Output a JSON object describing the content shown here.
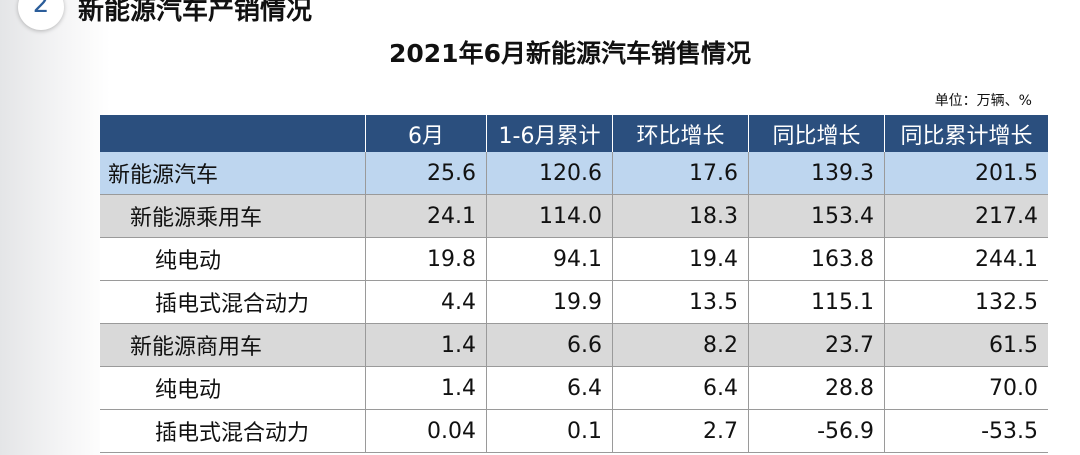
{
  "section": {
    "number": "2",
    "title": "新能源汽车产销情况"
  },
  "table_title": "2021年6月新能源汽车销售情况",
  "unit": "单位：万辆、%",
  "table": {
    "columns": [
      "",
      "6月",
      "1-6月累计",
      "环比增长",
      "同比增长",
      "同比累计增长"
    ],
    "rows": [
      [
        "新能源汽车",
        "25.6",
        "120.6",
        "17.6",
        "139.3",
        "201.5"
      ],
      [
        "新能源乘用车",
        "24.1",
        "114.0",
        "18.3",
        "153.4",
        "217.4"
      ],
      [
        "纯电动",
        "19.8",
        "94.1",
        "19.4",
        "163.8",
        "244.1"
      ],
      [
        "插电式混合动力",
        "4.4",
        "19.9",
        "13.5",
        "115.1",
        "132.5"
      ],
      [
        "新能源商用车",
        "1.4",
        "6.6",
        "8.2",
        "23.7",
        "61.5"
      ],
      [
        "纯电动",
        "1.4",
        "6.4",
        "6.4",
        "28.8",
        "70.0"
      ],
      [
        "插电式混合动力",
        "0.04",
        "0.1",
        "2.7",
        "-56.9",
        "-53.5"
      ]
    ]
  }
}
